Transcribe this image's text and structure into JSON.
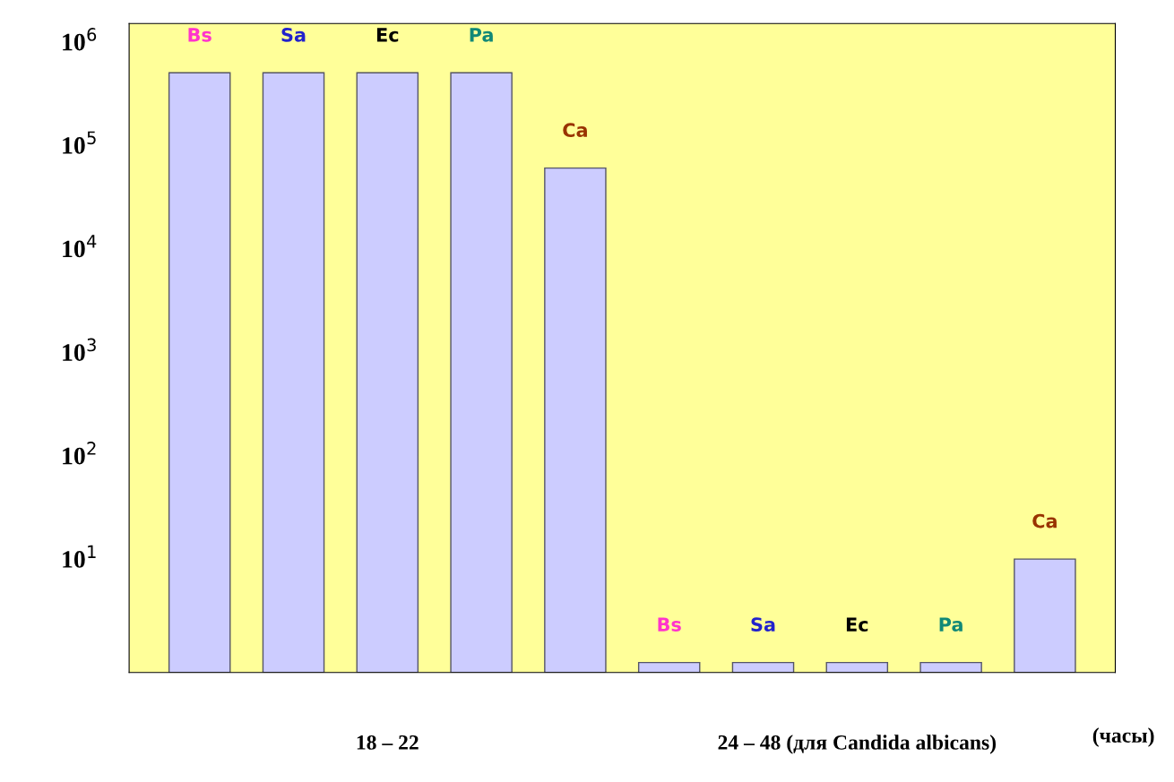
{
  "chart_data": {
    "type": "bar",
    "categories": [
      "18 – 22",
      "24 – 48 (для Candida albicans)"
    ],
    "xlabel": "(часы)",
    "series": [
      {
        "name": "Bs",
        "color": "#ccccff",
        "values": [
          500000,
          1
        ]
      },
      {
        "name": "Sa",
        "color": "#ccccff",
        "values": [
          500000,
          1
        ]
      },
      {
        "name": "Ec",
        "color": "#ccccff",
        "values": [
          500000,
          1
        ]
      },
      {
        "name": "Pa",
        "color": "#ccccff",
        "values": [
          500000,
          1
        ]
      },
      {
        "name": "Ca",
        "color": "#ccccff",
        "values": [
          60000,
          10
        ]
      }
    ],
    "log": true,
    "ylim": [
      0.8,
      1500000
    ],
    "yticks": [
      {
        "value": 10,
        "label": "10$^{1}$"
      },
      {
        "value": 100,
        "label": "10$^{2}$"
      },
      {
        "value": 1000,
        "label": "10$^{3}$"
      },
      {
        "value": 10000,
        "label": "10$^{4}$"
      },
      {
        "value": 100000,
        "label": "10$^{5}$"
      },
      {
        "value": 1000000,
        "label": "10$^{6}$"
      }
    ],
    "grid": false,
    "legend": false
  }
}
